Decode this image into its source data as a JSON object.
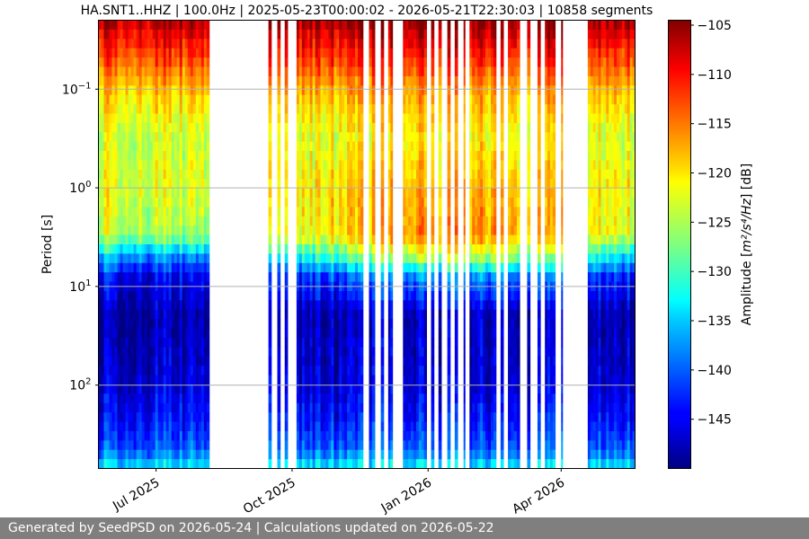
{
  "chart_data": {
    "type": "heatmap",
    "title": "HA.SNT1..HHZ | 100.0Hz | 2025-05-23T00:00:02 - 2026-05-21T22:30:03 | 10858 segments",
    "xlabel": "",
    "ylabel": "Period [s]",
    "y_scale": "log",
    "y_inverted": true,
    "ylim_period_s": [
      0.02,
      700
    ],
    "xlim": [
      "2025-05-23",
      "2026-05-21"
    ],
    "x_tick_labels": [
      {
        "date": "2025-07-01",
        "label": "Jul 2025"
      },
      {
        "date": "2025-10-01",
        "label": "Oct 2025"
      },
      {
        "date": "2026-01-01",
        "label": "Jan 2026"
      },
      {
        "date": "2026-04-01",
        "label": "Apr 2026"
      }
    ],
    "y_ticks": [
      {
        "value": 0.1,
        "base": "10",
        "exp": "−1"
      },
      {
        "value": 1,
        "base": "10",
        "exp": "0"
      },
      {
        "value": 10,
        "base": "10",
        "exp": "1"
      },
      {
        "value": 100,
        "base": "10",
        "exp": "2"
      }
    ],
    "grid": "horizontal",
    "colorbar": {
      "label_prefix": "Amplitude [",
      "label_units": "m²/s⁴/Hz",
      "label_suffix": "] [dB]",
      "colormap": "jet",
      "range_db": [
        -150,
        -104.5
      ],
      "ticks": [
        -105,
        -110,
        -115,
        -120,
        -125,
        -130,
        -135,
        -140,
        -145
      ]
    },
    "data_coverage": [
      [
        "2025-05-23",
        "2025-08-06"
      ],
      [
        "2025-09-15",
        "2025-09-17"
      ],
      [
        "2025-09-21",
        "2025-09-23"
      ],
      [
        "2025-09-26",
        "2025-09-28"
      ],
      [
        "2025-10-04",
        "2025-11-18"
      ],
      [
        "2025-11-22",
        "2025-11-26"
      ],
      [
        "2025-11-30",
        "2025-12-02"
      ],
      [
        "2025-12-05",
        "2025-12-08"
      ],
      [
        "2025-12-15",
        "2025-12-31"
      ],
      [
        "2026-01-03",
        "2026-01-05"
      ],
      [
        "2026-01-08",
        "2026-01-10"
      ],
      [
        "2026-01-14",
        "2026-01-16"
      ],
      [
        "2026-01-19",
        "2026-01-21"
      ],
      [
        "2026-01-25",
        "2026-01-26"
      ],
      [
        "2026-01-29",
        "2026-02-16"
      ],
      [
        "2026-02-19",
        "2026-02-21"
      ],
      [
        "2026-02-24",
        "2026-03-04"
      ],
      [
        "2026-03-09",
        "2026-03-11"
      ],
      [
        "2026-03-16",
        "2026-03-18"
      ],
      [
        "2026-03-21",
        "2026-03-28"
      ],
      [
        "2026-04-01",
        "2026-04-02"
      ],
      [
        "2026-04-19",
        "2026-05-21"
      ]
    ],
    "spectrum_profile_db": [
      {
        "period_s": 0.02,
        "winter_db": -105,
        "summer_db": -106
      },
      {
        "period_s": 0.03,
        "winter_db": -108,
        "summer_db": -110
      },
      {
        "period_s": 0.06,
        "winter_db": -113,
        "summer_db": -115
      },
      {
        "period_s": 0.1,
        "winter_db": -117,
        "summer_db": -119
      },
      {
        "period_s": 0.3,
        "winter_db": -121,
        "summer_db": -124
      },
      {
        "period_s": 1,
        "winter_db": -118,
        "summer_db": -123
      },
      {
        "period_s": 3,
        "winter_db": -116,
        "summer_db": -126
      },
      {
        "period_s": 5,
        "winter_db": -124,
        "summer_db": -138
      },
      {
        "period_s": 8,
        "winter_db": -138,
        "summer_db": -145
      },
      {
        "period_s": 20,
        "winter_db": -147,
        "summer_db": -148
      },
      {
        "period_s": 100,
        "winter_db": -146,
        "summer_db": -146
      },
      {
        "period_s": 250,
        "winter_db": -143,
        "summer_db": -143
      },
      {
        "period_s": 450,
        "winter_db": -140,
        "summer_db": -140
      },
      {
        "period_s": 700,
        "winter_db": -133,
        "summer_db": -133
      }
    ]
  },
  "footer": {
    "text": "Generated by SeedPSD on 2026-05-24 | Calculations updated on 2026-05-22"
  }
}
